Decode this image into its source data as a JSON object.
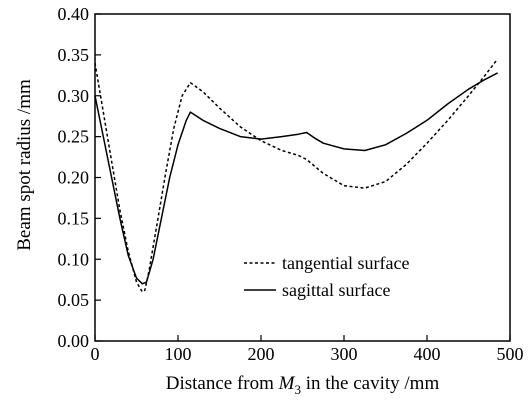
{
  "chart_data": {
    "type": "line",
    "xlabel_parts": [
      "Distance from ",
      "M",
      "3",
      " in the cavity /mm"
    ],
    "ylabel": "Beam spot radius /mm",
    "xlim": [
      0,
      500
    ],
    "ylim": [
      0,
      0.4
    ],
    "x_ticks": [
      "0",
      "100",
      "200",
      "300",
      "400",
      "500"
    ],
    "y_ticks": [
      "0.00",
      "0.05",
      "0.10",
      "0.15",
      "0.20",
      "0.25",
      "0.30",
      "0.35",
      "0.40"
    ],
    "grid": false,
    "legend_position": "lower-right",
    "series": [
      {
        "name": "tangential surface",
        "style": "dotted",
        "x": [
          0,
          10,
          20,
          30,
          40,
          50,
          57,
          60,
          65,
          75,
          85,
          95,
          105,
          115,
          130,
          150,
          175,
          200,
          225,
          245,
          255,
          275,
          300,
          325,
          350,
          375,
          400,
          425,
          450,
          470,
          485
        ],
        "y": [
          0.34,
          0.28,
          0.22,
          0.16,
          0.11,
          0.072,
          0.06,
          0.062,
          0.085,
          0.145,
          0.205,
          0.26,
          0.3,
          0.316,
          0.305,
          0.285,
          0.262,
          0.245,
          0.233,
          0.227,
          0.222,
          0.205,
          0.19,
          0.187,
          0.195,
          0.216,
          0.242,
          0.27,
          0.3,
          0.325,
          0.345
        ]
      },
      {
        "name": "sagittal surface",
        "style": "solid",
        "x": [
          0,
          10,
          20,
          30,
          40,
          50,
          57,
          62,
          70,
          80,
          90,
          100,
          110,
          115,
          130,
          150,
          175,
          200,
          225,
          245,
          255,
          265,
          275,
          300,
          325,
          350,
          375,
          400,
          425,
          450,
          470,
          485
        ],
        "y": [
          0.3,
          0.25,
          0.2,
          0.15,
          0.105,
          0.077,
          0.07,
          0.072,
          0.1,
          0.15,
          0.2,
          0.24,
          0.27,
          0.28,
          0.27,
          0.26,
          0.25,
          0.247,
          0.25,
          0.253,
          0.255,
          0.248,
          0.242,
          0.235,
          0.233,
          0.24,
          0.254,
          0.27,
          0.29,
          0.308,
          0.32,
          0.328
        ]
      }
    ]
  }
}
